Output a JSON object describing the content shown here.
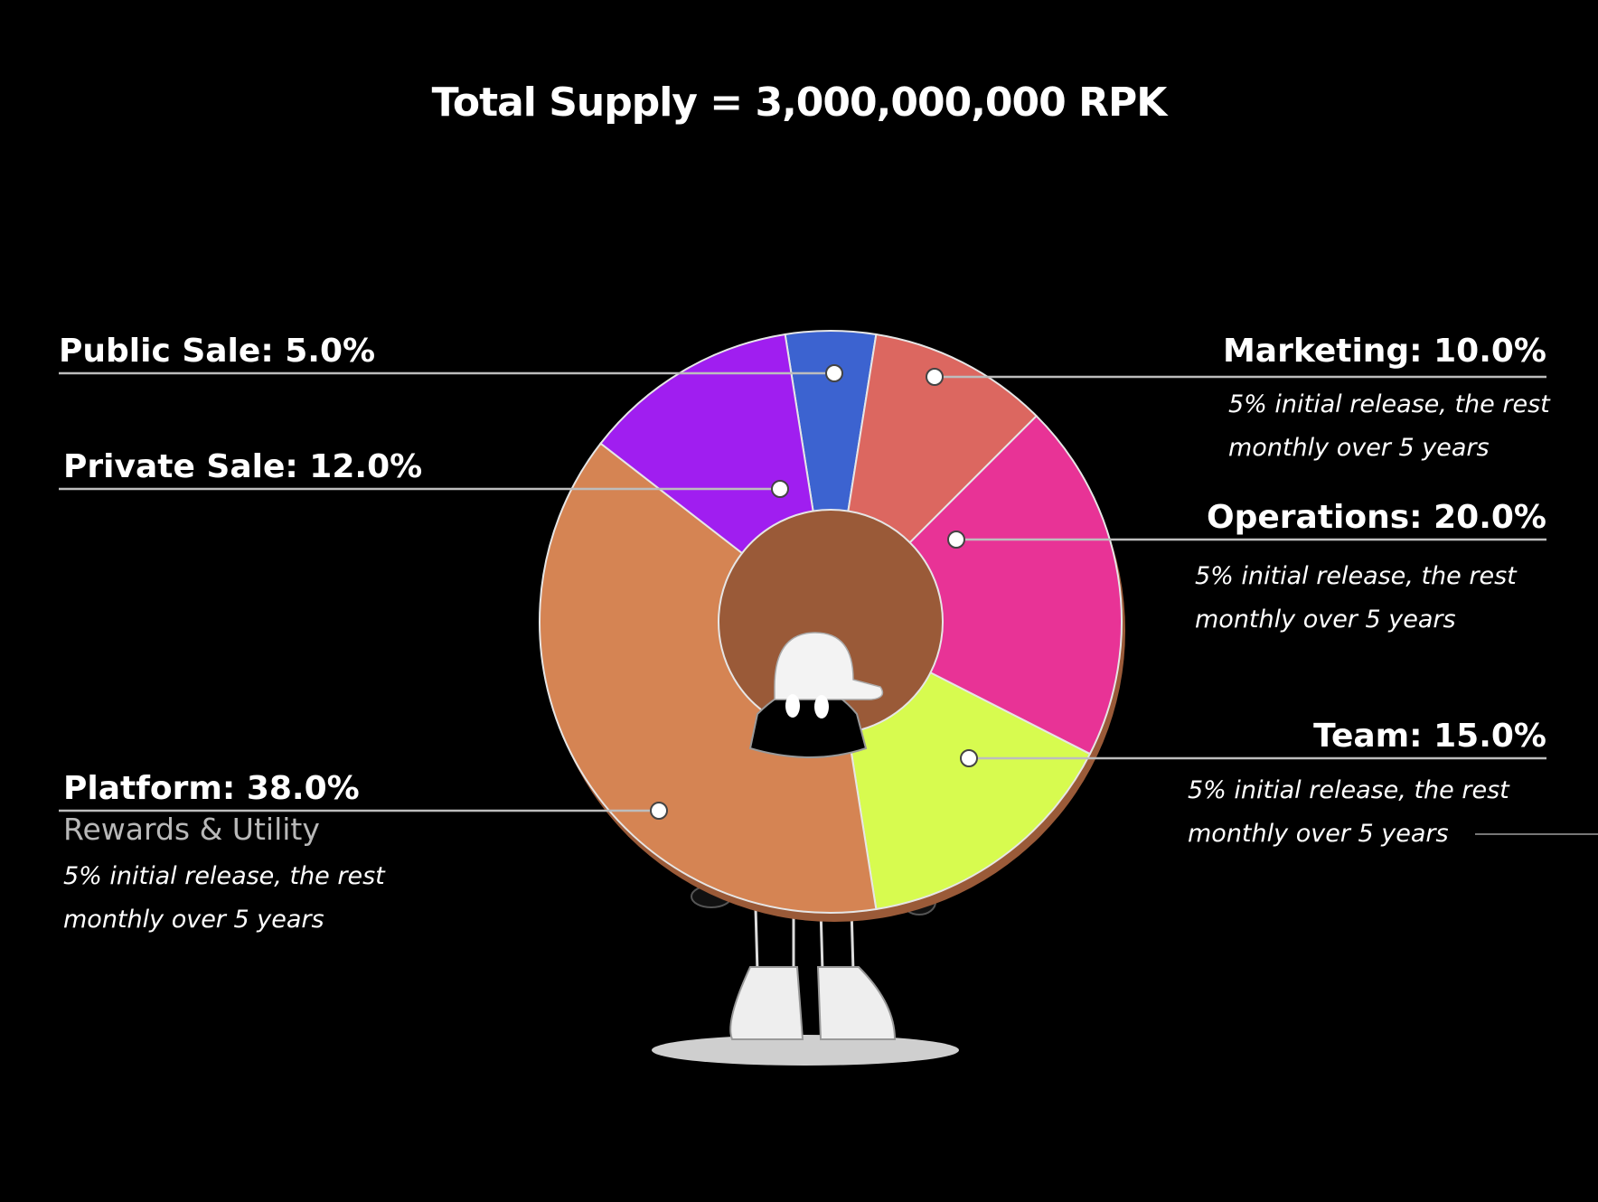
{
  "chart_data": {
    "type": "pie",
    "variant": "donut",
    "title": "Total Supply = 3,000,000,000 RPK",
    "slices": [
      {
        "label": "Public Sale: 5.0%",
        "name": "Public Sale",
        "value": 5.0,
        "color": "#3c63d0",
        "note": ""
      },
      {
        "label": "Marketing: 10.0%",
        "name": "Marketing",
        "value": 10.0,
        "color": "#dc6760",
        "note_line1": "5% initial release, the rest",
        "note_line2": "monthly over 5 years"
      },
      {
        "label": "Operations: 20.0%",
        "name": "Operations",
        "value": 20.0,
        "color": "#e83396",
        "note_line1": "5% initial release, the rest",
        "note_line2": "monthly over 5 years"
      },
      {
        "label": "Team: 15.0%",
        "name": "Team",
        "value": 15.0,
        "color": "#d7fb4f",
        "note_line1": "5% initial release, the rest",
        "note_line2": "monthly over 5 years"
      },
      {
        "label": "Platform: 38.0%",
        "name": "Platform",
        "value": 38.0,
        "color": "#d58453",
        "subtitle": "Rewards & Utility",
        "note_line1": "5% initial release, the rest",
        "note_line2": "monthly over 5 years"
      },
      {
        "label": "Private Sale: 12.0%",
        "name": "Private Sale",
        "value": 12.0,
        "color": "#a01ef0",
        "note": ""
      }
    ]
  }
}
